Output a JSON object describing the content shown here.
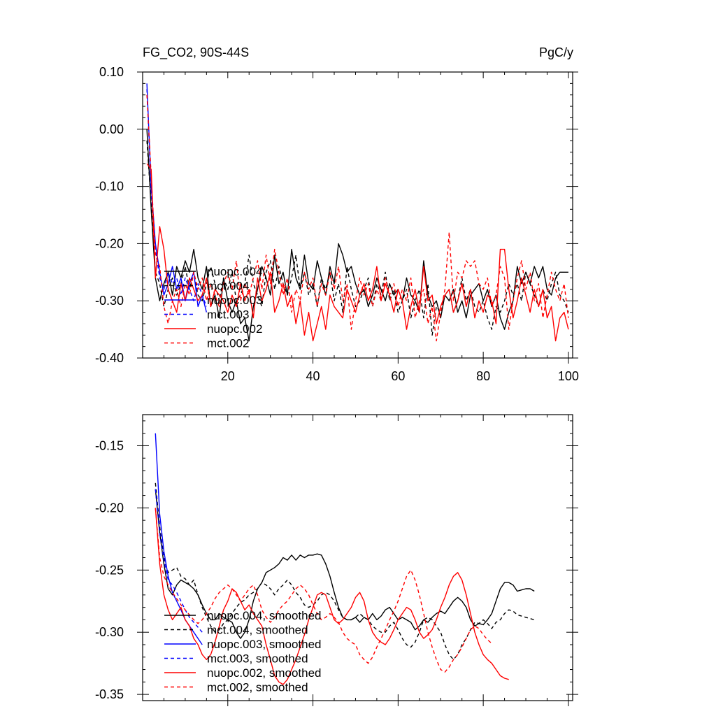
{
  "chart_data": [
    {
      "type": "line",
      "title": "FG_CO2, 90S-44S",
      "units": "PgC/y",
      "xlabel": "",
      "ylabel": "",
      "xlim": [
        0,
        101
      ],
      "ylim": [
        -0.4,
        0.1
      ],
      "x_ticks": [
        "20",
        "40",
        "60",
        "80",
        "100"
      ],
      "y_ticks": [
        "0.10",
        "0.00",
        "-0.10",
        "-0.20",
        "-0.30",
        "-0.40"
      ],
      "grid": false,
      "legend_position": "lower-left",
      "series": [
        {
          "name": "nuopc.004",
          "color": "#000000",
          "dash": "solid",
          "x_start": 1,
          "values": [
            0.0,
            -0.14,
            -0.26,
            -0.3,
            -0.27,
            -0.25,
            -0.29,
            -0.24,
            -0.26,
            -0.23,
            -0.25,
            -0.21,
            -0.26,
            -0.28,
            -0.24,
            -0.31,
            -0.29,
            -0.33,
            -0.26,
            -0.3,
            -0.32,
            -0.3,
            -0.34,
            -0.33,
            -0.37,
            -0.31,
            -0.28,
            -0.24,
            -0.26,
            -0.29,
            -0.22,
            -0.27,
            -0.25,
            -0.29,
            -0.21,
            -0.26,
            -0.28,
            -0.22,
            -0.27,
            -0.28,
            -0.23,
            -0.26,
            -0.29,
            -0.24,
            -0.27,
            -0.2,
            -0.22,
            -0.25,
            -0.24,
            -0.27,
            -0.29,
            -0.28,
            -0.31,
            -0.29,
            -0.26,
            -0.28,
            -0.3,
            -0.27,
            -0.29,
            -0.28,
            -0.3,
            -0.26,
            -0.29,
            -0.3,
            -0.32,
            -0.23,
            -0.29,
            -0.31,
            -0.3,
            -0.33,
            -0.29,
            -0.3,
            -0.28,
            -0.32,
            -0.3,
            -0.33,
            -0.29,
            -0.28,
            -0.27,
            -0.3,
            -0.28,
            -0.31,
            -0.29,
            -0.33,
            -0.35,
            -0.32,
            -0.3,
            -0.24,
            -0.27,
            -0.25,
            -0.27,
            -0.24,
            -0.26,
            -0.24,
            -0.28,
            -0.29,
            -0.26,
            -0.25,
            -0.25,
            -0.25
          ]
        },
        {
          "name": "mct.004",
          "color": "#000000",
          "dash": "dashed",
          "x_start": 1,
          "values": [
            -0.02,
            -0.13,
            -0.25,
            -0.27,
            -0.31,
            -0.28,
            -0.26,
            -0.29,
            -0.27,
            -0.24,
            -0.28,
            -0.25,
            -0.29,
            -0.3,
            -0.27,
            -0.24,
            -0.27,
            -0.3,
            -0.26,
            -0.28,
            -0.25,
            -0.3,
            -0.29,
            -0.27,
            -0.22,
            -0.27,
            -0.29,
            -0.31,
            -0.25,
            -0.23,
            -0.28,
            -0.24,
            -0.27,
            -0.29,
            -0.26,
            -0.22,
            -0.28,
            -0.25,
            -0.29,
            -0.27,
            -0.31,
            -0.26,
            -0.28,
            -0.25,
            -0.3,
            -0.27,
            -0.32,
            -0.24,
            -0.28,
            -0.31,
            -0.3,
            -0.28,
            -0.26,
            -0.31,
            -0.27,
            -0.29,
            -0.25,
            -0.3,
            -0.28,
            -0.32,
            -0.3,
            -0.28,
            -0.33,
            -0.3,
            -0.28,
            -0.33,
            -0.27,
            -0.36,
            -0.31,
            -0.32,
            -0.29,
            -0.28,
            -0.32,
            -0.3,
            -0.26,
            -0.3,
            -0.28,
            -0.31,
            -0.32,
            -0.3,
            -0.33,
            -0.35,
            -0.31,
            -0.32,
            -0.3,
            -0.27,
            -0.29,
            -0.27,
            -0.3,
            -0.25,
            -0.27,
            -0.29,
            -0.31,
            -0.28,
            -0.3,
            -0.27,
            -0.25,
            -0.29,
            -0.3,
            -0.32
          ]
        },
        {
          "name": "nuopc.003",
          "color": "#0000ff",
          "dash": "solid",
          "x_start": 1,
          "values": [
            0.08,
            -0.1,
            -0.2,
            -0.25,
            -0.29,
            -0.27,
            -0.24,
            -0.28,
            -0.26,
            -0.3,
            -0.27,
            -0.25,
            -0.31,
            -0.29,
            -0.32
          ]
        },
        {
          "name": "mct.003",
          "color": "#0000ff",
          "dash": "dashed",
          "x_start": 1,
          "values": [
            0.07,
            -0.11,
            -0.21,
            -0.26,
            -0.28,
            -0.25,
            -0.27,
            -0.26,
            -0.29,
            -0.26,
            -0.28,
            -0.3,
            -0.27,
            -0.29,
            -0.31
          ]
        },
        {
          "name": "nuopc.002",
          "color": "#ff0000",
          "dash": "solid",
          "x_start": 1,
          "values": [
            -0.06,
            -0.07,
            -0.26,
            -0.17,
            -0.21,
            -0.28,
            -0.3,
            -0.32,
            -0.27,
            -0.3,
            -0.26,
            -0.28,
            -0.3,
            -0.29,
            -0.26,
            -0.31,
            -0.28,
            -0.29,
            -0.3,
            -0.32,
            -0.29,
            -0.31,
            -0.27,
            -0.3,
            -0.28,
            -0.33,
            -0.26,
            -0.3,
            -0.28,
            -0.25,
            -0.32,
            -0.3,
            -0.27,
            -0.31,
            -0.29,
            -0.34,
            -0.3,
            -0.36,
            -0.32,
            -0.37,
            -0.34,
            -0.31,
            -0.35,
            -0.29,
            -0.31,
            -0.32,
            -0.33,
            -0.28,
            -0.3,
            -0.32,
            -0.29,
            -0.27,
            -0.3,
            -0.28,
            -0.24,
            -0.3,
            -0.27,
            -0.29,
            -0.32,
            -0.28,
            -0.3,
            -0.35,
            -0.31,
            -0.28,
            -0.32,
            -0.24,
            -0.3,
            -0.29,
            -0.34,
            -0.31,
            -0.29,
            -0.28,
            -0.32,
            -0.3,
            -0.27,
            -0.31,
            -0.28,
            -0.33,
            -0.3,
            -0.32,
            -0.29,
            -0.3,
            -0.34,
            -0.21,
            -0.21,
            -0.28,
            -0.33,
            -0.3,
            -0.26,
            -0.29,
            -0.32,
            -0.28,
            -0.31,
            -0.28,
            -0.33,
            -0.31,
            -0.37,
            -0.33,
            -0.32,
            -0.35
          ]
        },
        {
          "name": "mct.002",
          "color": "#ff0000",
          "dash": "dashed",
          "x_start": 1,
          "values": [
            0.06,
            -0.08,
            -0.22,
            -0.24,
            -0.31,
            -0.34,
            -0.3,
            -0.28,
            -0.31,
            -0.27,
            -0.29,
            -0.25,
            -0.28,
            -0.26,
            -0.3,
            -0.27,
            -0.29,
            -0.31,
            -0.27,
            -0.25,
            -0.28,
            -0.23,
            -0.3,
            -0.27,
            -0.29,
            -0.26,
            -0.23,
            -0.28,
            -0.22,
            -0.27,
            -0.21,
            -0.25,
            -0.29,
            -0.26,
            -0.32,
            -0.28,
            -0.3,
            -0.25,
            -0.28,
            -0.26,
            -0.31,
            -0.27,
            -0.29,
            -0.25,
            -0.28,
            -0.24,
            -0.3,
            -0.27,
            -0.35,
            -0.3,
            -0.26,
            -0.29,
            -0.27,
            -0.31,
            -0.28,
            -0.3,
            -0.26,
            -0.29,
            -0.27,
            -0.31,
            -0.28,
            -0.3,
            -0.26,
            -0.33,
            -0.3,
            -0.28,
            -0.34,
            -0.31,
            -0.37,
            -0.32,
            -0.28,
            -0.18,
            -0.3,
            -0.25,
            -0.26,
            -0.23,
            -0.24,
            -0.23,
            -0.27,
            -0.28,
            -0.26,
            -0.31,
            -0.29,
            -0.24,
            -0.26,
            -0.35,
            -0.3,
            -0.26,
            -0.23,
            -0.28,
            -0.25,
            -0.3,
            -0.27,
            -0.33,
            -0.29,
            -0.25,
            -0.28,
            -0.3,
            -0.27,
            -0.33
          ]
        }
      ]
    },
    {
      "type": "line",
      "title": "",
      "xlabel": "",
      "ylabel": "",
      "xlim": [
        0,
        101
      ],
      "ylim": [
        -0.355,
        -0.125
      ],
      "y_ticks": [
        "-0.15",
        "-0.20",
        "-0.25",
        "-0.30",
        "-0.35"
      ],
      "grid": false,
      "legend_position": "lower-left",
      "series": [
        {
          "name": "nuopc.004, smoothed",
          "color": "#000000",
          "dash": "solid",
          "x_start": 3,
          "values": [
            -0.185,
            -0.22,
            -0.245,
            -0.265,
            -0.27,
            -0.262,
            -0.258,
            -0.26,
            -0.262,
            -0.265,
            -0.27,
            -0.278,
            -0.285,
            -0.29,
            -0.29,
            -0.285,
            -0.288,
            -0.29,
            -0.292,
            -0.3,
            -0.305,
            -0.3,
            -0.29,
            -0.275,
            -0.265,
            -0.26,
            -0.252,
            -0.25,
            -0.248,
            -0.245,
            -0.24,
            -0.242,
            -0.238,
            -0.242,
            -0.238,
            -0.24,
            -0.238,
            -0.238,
            -0.237,
            -0.238,
            -0.245,
            -0.255,
            -0.268,
            -0.28,
            -0.288,
            -0.29,
            -0.29,
            -0.288,
            -0.292,
            -0.288,
            -0.29,
            -0.285,
            -0.29,
            -0.287,
            -0.282,
            -0.28,
            -0.285,
            -0.29,
            -0.288,
            -0.29,
            -0.292,
            -0.298,
            -0.295,
            -0.29,
            -0.292,
            -0.288,
            -0.285,
            -0.283,
            -0.285,
            -0.28,
            -0.275,
            -0.272,
            -0.275,
            -0.28,
            -0.29,
            -0.295,
            -0.293,
            -0.294,
            -0.29,
            -0.285,
            -0.275,
            -0.265,
            -0.26,
            -0.26,
            -0.262,
            -0.267,
            -0.266,
            -0.265,
            -0.265,
            -0.267
          ]
        },
        {
          "name": "mct.004, smoothed",
          "color": "#000000",
          "dash": "dashed",
          "x_start": 3,
          "values": [
            -0.18,
            -0.215,
            -0.24,
            -0.252,
            -0.25,
            -0.248,
            -0.255,
            -0.257,
            -0.262,
            -0.258,
            -0.27,
            -0.28,
            -0.288,
            -0.295,
            -0.3,
            -0.298,
            -0.293,
            -0.29,
            -0.285,
            -0.28,
            -0.276,
            -0.274,
            -0.27,
            -0.268,
            -0.265,
            -0.26,
            -0.262,
            -0.265,
            -0.27,
            -0.265,
            -0.262,
            -0.258,
            -0.262,
            -0.268,
            -0.272,
            -0.278,
            -0.28,
            -0.278,
            -0.275,
            -0.27,
            -0.268,
            -0.27,
            -0.275,
            -0.282,
            -0.288,
            -0.29,
            -0.29,
            -0.288,
            -0.285,
            -0.288,
            -0.29,
            -0.295,
            -0.298,
            -0.3,
            -0.3,
            -0.295,
            -0.292,
            -0.298,
            -0.305,
            -0.31,
            -0.312,
            -0.308,
            -0.3,
            -0.29,
            -0.288,
            -0.29,
            -0.295,
            -0.3,
            -0.31,
            -0.318,
            -0.322,
            -0.318,
            -0.31,
            -0.305,
            -0.298,
            -0.292,
            -0.293,
            -0.29,
            -0.293,
            -0.297,
            -0.292,
            -0.29,
            -0.285,
            -0.282,
            -0.283,
            -0.286,
            -0.287,
            -0.288,
            -0.289,
            -0.29
          ]
        },
        {
          "name": "nuopc.003, smoothed",
          "color": "#0000ff",
          "dash": "solid",
          "x_start": 3,
          "values": [
            -0.14,
            -0.205,
            -0.235,
            -0.255,
            -0.268,
            -0.275,
            -0.282,
            -0.29,
            -0.295,
            -0.3,
            -0.305,
            -0.31
          ]
        },
        {
          "name": "mct.003, smoothed",
          "color": "#0000ff",
          "dash": "dashed",
          "x_start": 3,
          "values": [
            -0.185,
            -0.22,
            -0.242,
            -0.258,
            -0.262,
            -0.268,
            -0.275,
            -0.282,
            -0.288,
            -0.292,
            -0.296,
            -0.3
          ]
        },
        {
          "name": "nuopc.002, smoothed",
          "color": "#ff0000",
          "dash": "solid",
          "x_start": 3,
          "values": [
            -0.2,
            -0.245,
            -0.27,
            -0.282,
            -0.29,
            -0.285,
            -0.28,
            -0.29,
            -0.295,
            -0.305,
            -0.31,
            -0.318,
            -0.322,
            -0.318,
            -0.308,
            -0.295,
            -0.282,
            -0.275,
            -0.265,
            -0.268,
            -0.275,
            -0.282,
            -0.278,
            -0.285,
            -0.29,
            -0.295,
            -0.31,
            -0.322,
            -0.335,
            -0.34,
            -0.342,
            -0.338,
            -0.33,
            -0.322,
            -0.312,
            -0.302,
            -0.29,
            -0.28,
            -0.27,
            -0.268,
            -0.27,
            -0.28,
            -0.29,
            -0.293,
            -0.29,
            -0.285,
            -0.28,
            -0.272,
            -0.268,
            -0.275,
            -0.29,
            -0.3,
            -0.305,
            -0.308,
            -0.31,
            -0.305,
            -0.298,
            -0.29,
            -0.285,
            -0.28,
            -0.282,
            -0.29,
            -0.3,
            -0.305,
            -0.302,
            -0.298,
            -0.29,
            -0.28,
            -0.272,
            -0.262,
            -0.255,
            -0.252,
            -0.258,
            -0.27,
            -0.285,
            -0.3,
            -0.31,
            -0.318,
            -0.322,
            -0.325,
            -0.33,
            -0.335,
            -0.337,
            -0.338
          ]
        },
        {
          "name": "mct.002, smoothed",
          "color": "#ff0000",
          "dash": "dashed",
          "x_start": 3,
          "values": [
            -0.2,
            -0.24,
            -0.255,
            -0.262,
            -0.268,
            -0.273,
            -0.278,
            -0.282,
            -0.286,
            -0.29,
            -0.293,
            -0.29,
            -0.285,
            -0.28,
            -0.273,
            -0.268,
            -0.265,
            -0.262,
            -0.265,
            -0.27,
            -0.275,
            -0.27,
            -0.265,
            -0.262,
            -0.27,
            -0.282,
            -0.288,
            -0.292,
            -0.288,
            -0.282,
            -0.278,
            -0.275,
            -0.27,
            -0.265,
            -0.262,
            -0.265,
            -0.27,
            -0.278,
            -0.285,
            -0.29,
            -0.288,
            -0.285,
            -0.288,
            -0.292,
            -0.3,
            -0.305,
            -0.308,
            -0.31,
            -0.318,
            -0.322,
            -0.325,
            -0.32,
            -0.312,
            -0.305,
            -0.298,
            -0.29,
            -0.283,
            -0.275,
            -0.265,
            -0.255,
            -0.25,
            -0.258,
            -0.27,
            -0.285,
            -0.3,
            -0.312,
            -0.322,
            -0.33,
            -0.332,
            -0.328,
            -0.322,
            -0.318,
            -0.312,
            -0.305,
            -0.298,
            -0.295,
            -0.297,
            -0.302,
            -0.306,
            -0.309
          ]
        }
      ]
    }
  ]
}
